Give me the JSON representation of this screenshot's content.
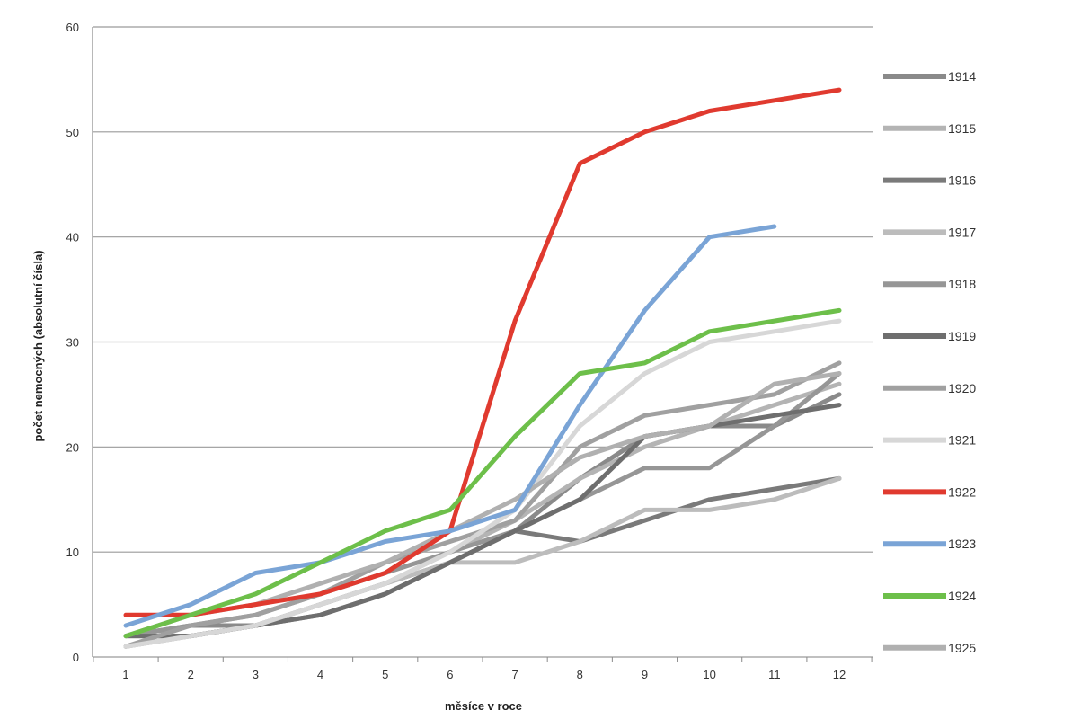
{
  "chart_data": {
    "type": "line",
    "title": "",
    "xlabel": "měsíce v roce",
    "ylabel": "počet nemocných (absolutní čísla)",
    "x": [
      1,
      2,
      3,
      4,
      5,
      6,
      7,
      8,
      9,
      10,
      11,
      12
    ],
    "xlim": [
      1,
      12
    ],
    "ylim": [
      0,
      60
    ],
    "yticks": [
      0,
      10,
      20,
      30,
      40,
      50,
      60
    ],
    "grid": "horizontal",
    "legend": "right",
    "series": [
      {
        "name": "1914",
        "color": "#8a8a8a",
        "values": [
          2,
          3,
          3,
          5,
          7,
          9,
          12,
          17,
          21,
          22,
          22,
          25
        ]
      },
      {
        "name": "1915",
        "color": "#b4b4b4",
        "values": [
          1,
          2,
          3,
          5,
          7,
          10,
          13,
          17,
          20,
          22,
          24,
          26
        ]
      },
      {
        "name": "1916",
        "color": "#7a7a7a",
        "values": [
          2,
          2,
          3,
          4,
          6,
          9,
          12,
          11,
          13,
          15,
          16,
          17
        ]
      },
      {
        "name": "1917",
        "color": "#bcbcbc",
        "values": [
          1,
          2,
          3,
          5,
          7,
          9,
          9,
          11,
          14,
          14,
          15,
          17
        ]
      },
      {
        "name": "1918",
        "color": "#969696",
        "values": [
          2,
          3,
          4,
          6,
          8,
          10,
          12,
          15,
          18,
          18,
          22,
          27
        ]
      },
      {
        "name": "1919",
        "color": "#6e6e6e",
        "values": [
          2,
          2,
          3,
          4,
          6,
          9,
          12,
          15,
          21,
          22,
          23,
          24
        ]
      },
      {
        "name": "1920",
        "color": "#a0a0a0",
        "values": [
          1,
          3,
          4,
          6,
          9,
          11,
          13,
          20,
          23,
          24,
          25,
          28
        ]
      },
      {
        "name": "1921",
        "color": "#d7d7d7",
        "values": [
          1,
          2,
          3,
          5,
          7,
          10,
          14,
          22,
          27,
          30,
          31,
          32
        ]
      },
      {
        "name": "1922",
        "color": "#e03a2f",
        "values": [
          4,
          4,
          5,
          6,
          8,
          12,
          32,
          47,
          50,
          52,
          53,
          54
        ]
      },
      {
        "name": "1923",
        "color": "#7aa4d6",
        "values": [
          3,
          5,
          8,
          9,
          11,
          12,
          14,
          24,
          33,
          40,
          41,
          null
        ]
      },
      {
        "name": "1924",
        "color": "#6dbf4a",
        "values": [
          2,
          4,
          6,
          9,
          12,
          14,
          21,
          27,
          28,
          31,
          32,
          33
        ]
      },
      {
        "name": "1925",
        "color": "#b0b0b0",
        "values": [
          2,
          4,
          5,
          7,
          9,
          12,
          15,
          19,
          21,
          22,
          26,
          27
        ]
      }
    ]
  }
}
